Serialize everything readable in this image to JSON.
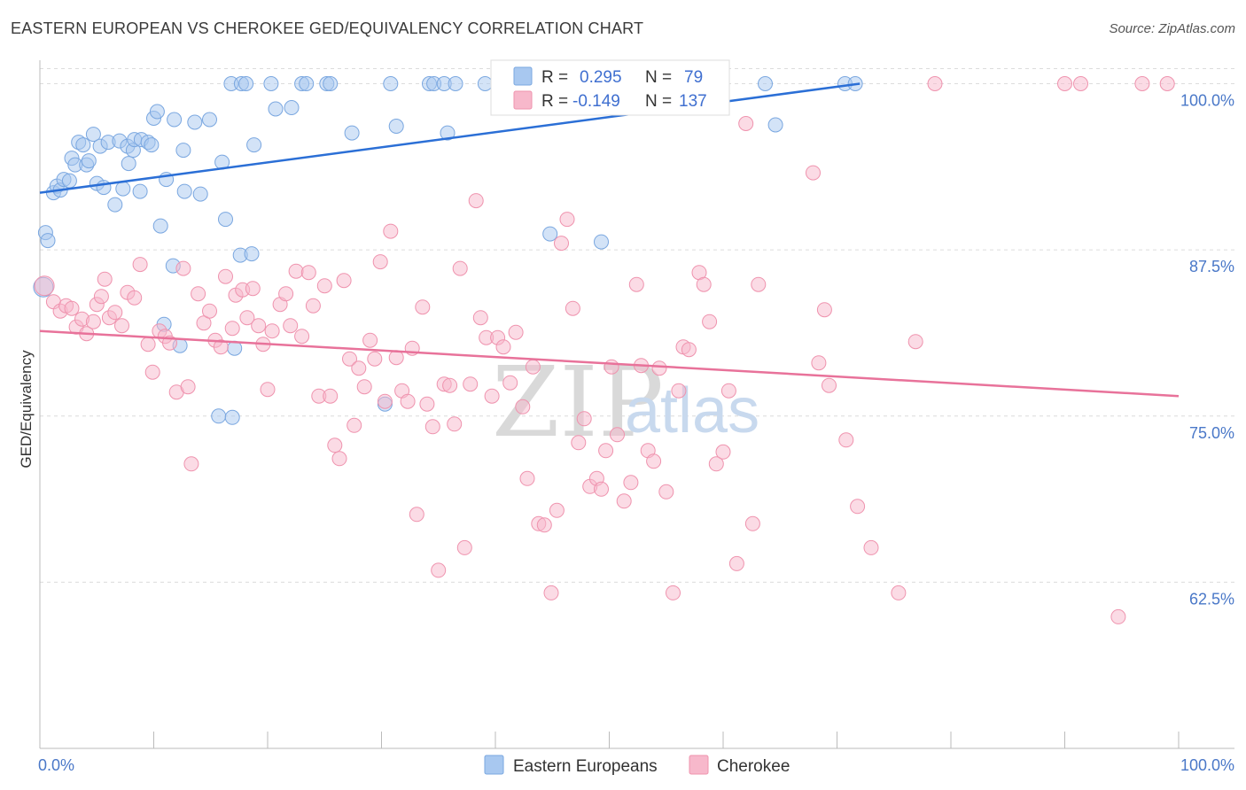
{
  "header": {
    "title": "EASTERN EUROPEAN VS CHEROKEE GED/EQUIVALENCY CORRELATION CHART",
    "source": "Source: ZipAtlas.com"
  },
  "watermark": {
    "zip": "ZIP",
    "atlas": "atlas"
  },
  "legend_box": {
    "rows": [
      {
        "r_label": "R =",
        "r_value": "0.295",
        "n_label": "N =",
        "n_value": "79",
        "color": "#a8c8f0"
      },
      {
        "r_label": "R =",
        "r_value": "-0.149",
        "n_label": "N =",
        "n_value": "137",
        "color": "#f7b8cb"
      }
    ]
  },
  "bottom_legend": [
    "Eastern Europeans",
    "Cherokee"
  ],
  "chart_data": {
    "type": "scatter",
    "title": "EASTERN EUROPEAN VS CHEROKEE GED/EQUIVALENCY CORRELATION CHART",
    "xlabel": "",
    "ylabel": "GED/Equivalency",
    "xlim": [
      0,
      100
    ],
    "ylim": [
      50,
      101.5
    ],
    "x_tick_labels": [
      "0.0%",
      "100.0%"
    ],
    "y_ticks": [
      62.5,
      75.0,
      87.5,
      100.0
    ],
    "y_tick_labels": [
      "62.5%",
      "75.0%",
      "87.5%",
      "100.0%"
    ],
    "grid": true,
    "legend": "top-center",
    "series": [
      {
        "name": "Eastern Europeans",
        "color": "#a8c8f0",
        "stroke": "#7aa7e0",
        "trend_color": "#2b6fd6",
        "trend": {
          "x": [
            0,
            72
          ],
          "y": [
            91.8,
            100.0
          ]
        },
        "points": [
          [
            0.3,
            84.7
          ],
          [
            0.5,
            88.8
          ],
          [
            0.7,
            88.2
          ],
          [
            1.2,
            91.8
          ],
          [
            1.5,
            92.3
          ],
          [
            1.8,
            92.0
          ],
          [
            2.1,
            92.8
          ],
          [
            2.6,
            92.7
          ],
          [
            2.8,
            94.4
          ],
          [
            3.1,
            93.9
          ],
          [
            3.4,
            95.6
          ],
          [
            3.8,
            95.4
          ],
          [
            4.1,
            93.9
          ],
          [
            4.3,
            94.2
          ],
          [
            4.7,
            96.2
          ],
          [
            5.0,
            92.5
          ],
          [
            5.3,
            95.3
          ],
          [
            5.6,
            92.2
          ],
          [
            6.0,
            95.6
          ],
          [
            6.6,
            90.9
          ],
          [
            7.0,
            95.7
          ],
          [
            7.3,
            92.1
          ],
          [
            7.7,
            95.3
          ],
          [
            7.8,
            94.0
          ],
          [
            8.2,
            95.0
          ],
          [
            8.3,
            95.8
          ],
          [
            8.8,
            91.9
          ],
          [
            8.9,
            95.8
          ],
          [
            9.5,
            95.6
          ],
          [
            9.8,
            95.4
          ],
          [
            10.0,
            97.4
          ],
          [
            10.3,
            97.9
          ],
          [
            10.6,
            89.3
          ],
          [
            10.9,
            81.9
          ],
          [
            11.1,
            92.8
          ],
          [
            11.7,
            86.3
          ],
          [
            11.8,
            97.3
          ],
          [
            12.3,
            80.3
          ],
          [
            12.6,
            95.0
          ],
          [
            12.7,
            91.9
          ],
          [
            13.6,
            97.1
          ],
          [
            14.1,
            91.7
          ],
          [
            14.9,
            97.3
          ],
          [
            15.7,
            75.0
          ],
          [
            16.0,
            94.1
          ],
          [
            16.3,
            89.8
          ],
          [
            16.8,
            100.0
          ],
          [
            16.9,
            74.9
          ],
          [
            17.1,
            80.1
          ],
          [
            17.6,
            87.1
          ],
          [
            17.7,
            100.0
          ],
          [
            18.1,
            100.0
          ],
          [
            18.6,
            87.2
          ],
          [
            18.8,
            95.4
          ],
          [
            20.3,
            100.0
          ],
          [
            20.7,
            98.1
          ],
          [
            22.1,
            98.2
          ],
          [
            23.0,
            100.0
          ],
          [
            23.4,
            100.0
          ],
          [
            25.2,
            100.0
          ],
          [
            25.5,
            100.0
          ],
          [
            27.4,
            96.3
          ],
          [
            30.3,
            75.9
          ],
          [
            30.8,
            100.0
          ],
          [
            31.3,
            96.8
          ],
          [
            34.2,
            100.0
          ],
          [
            34.6,
            100.0
          ],
          [
            35.5,
            100.0
          ],
          [
            35.8,
            96.3
          ],
          [
            36.5,
            100.0
          ],
          [
            39.1,
            100.0
          ],
          [
            44.8,
            88.7
          ],
          [
            47.7,
            100.0
          ],
          [
            49.3,
            88.1
          ],
          [
            53.3,
            100.0
          ],
          [
            63.7,
            100.0
          ],
          [
            64.6,
            96.9
          ],
          [
            70.7,
            100.0
          ],
          [
            71.6,
            100.0
          ]
        ]
      },
      {
        "name": "Cherokee",
        "color": "#f7b8cb",
        "stroke": "#ef93ae",
        "trend_color": "#e8729a",
        "trend": {
          "x": [
            0,
            100
          ],
          "y": [
            81.4,
            76.5
          ]
        },
        "points": [
          [
            0.4,
            84.8
          ],
          [
            1.2,
            83.6
          ],
          [
            1.8,
            82.9
          ],
          [
            2.3,
            83.3
          ],
          [
            2.8,
            83.1
          ],
          [
            3.2,
            81.7
          ],
          [
            3.7,
            82.3
          ],
          [
            4.1,
            81.2
          ],
          [
            4.7,
            82.1
          ],
          [
            5.0,
            83.4
          ],
          [
            5.4,
            84.0
          ],
          [
            5.7,
            85.3
          ],
          [
            6.1,
            82.4
          ],
          [
            6.6,
            82.8
          ],
          [
            7.2,
            81.8
          ],
          [
            7.7,
            84.3
          ],
          [
            8.3,
            83.9
          ],
          [
            8.8,
            86.4
          ],
          [
            9.5,
            80.4
          ],
          [
            9.9,
            78.3
          ],
          [
            10.5,
            81.4
          ],
          [
            11.0,
            81.0
          ],
          [
            11.4,
            80.5
          ],
          [
            12.0,
            76.8
          ],
          [
            12.6,
            86.1
          ],
          [
            13.0,
            77.2
          ],
          [
            13.3,
            71.4
          ],
          [
            13.9,
            84.2
          ],
          [
            14.4,
            82.0
          ],
          [
            14.9,
            82.9
          ],
          [
            15.4,
            80.7
          ],
          [
            15.9,
            80.2
          ],
          [
            16.3,
            85.5
          ],
          [
            16.9,
            81.6
          ],
          [
            17.2,
            84.1
          ],
          [
            17.8,
            84.5
          ],
          [
            18.2,
            82.4
          ],
          [
            18.7,
            84.6
          ],
          [
            19.2,
            81.8
          ],
          [
            19.6,
            80.4
          ],
          [
            20.0,
            77.0
          ],
          [
            20.4,
            81.4
          ],
          [
            21.1,
            83.4
          ],
          [
            21.6,
            84.2
          ],
          [
            22.0,
            81.8
          ],
          [
            22.5,
            85.9
          ],
          [
            23.0,
            81.0
          ],
          [
            23.6,
            85.8
          ],
          [
            24.0,
            83.3
          ],
          [
            24.5,
            76.5
          ],
          [
            25.0,
            84.8
          ],
          [
            25.5,
            76.5
          ],
          [
            25.9,
            72.8
          ],
          [
            26.3,
            71.8
          ],
          [
            26.7,
            85.2
          ],
          [
            27.2,
            79.3
          ],
          [
            27.6,
            74.3
          ],
          [
            28.0,
            78.6
          ],
          [
            28.5,
            77.2
          ],
          [
            29.0,
            80.7
          ],
          [
            29.4,
            79.3
          ],
          [
            29.9,
            86.6
          ],
          [
            30.3,
            76.1
          ],
          [
            30.8,
            88.9
          ],
          [
            31.3,
            79.4
          ],
          [
            31.8,
            76.9
          ],
          [
            32.3,
            76.1
          ],
          [
            32.7,
            80.1
          ],
          [
            33.1,
            67.6
          ],
          [
            33.6,
            83.2
          ],
          [
            34.0,
            75.9
          ],
          [
            34.5,
            74.2
          ],
          [
            35.0,
            63.4
          ],
          [
            35.5,
            77.4
          ],
          [
            36.0,
            77.3
          ],
          [
            36.4,
            74.4
          ],
          [
            36.9,
            86.1
          ],
          [
            37.3,
            65.1
          ],
          [
            37.8,
            77.4
          ],
          [
            38.3,
            91.2
          ],
          [
            38.7,
            82.4
          ],
          [
            39.2,
            80.9
          ],
          [
            39.7,
            76.5
          ],
          [
            40.2,
            80.9
          ],
          [
            40.7,
            80.2
          ],
          [
            41.3,
            77.5
          ],
          [
            41.8,
            81.3
          ],
          [
            42.4,
            75.7
          ],
          [
            42.8,
            70.3
          ],
          [
            43.3,
            78.7
          ],
          [
            43.8,
            66.9
          ],
          [
            44.3,
            66.8
          ],
          [
            44.9,
            61.7
          ],
          [
            45.4,
            67.9
          ],
          [
            45.8,
            88.0
          ],
          [
            46.3,
            89.8
          ],
          [
            46.8,
            83.1
          ],
          [
            47.3,
            73.0
          ],
          [
            47.8,
            74.8
          ],
          [
            48.3,
            69.7
          ],
          [
            48.9,
            70.3
          ],
          [
            49.3,
            69.5
          ],
          [
            49.7,
            72.4
          ],
          [
            50.2,
            78.7
          ],
          [
            50.7,
            73.6
          ],
          [
            51.3,
            68.6
          ],
          [
            51.9,
            70.0
          ],
          [
            52.4,
            84.9
          ],
          [
            52.8,
            78.8
          ],
          [
            53.4,
            72.4
          ],
          [
            53.9,
            71.6
          ],
          [
            54.4,
            78.6
          ],
          [
            55.0,
            69.3
          ],
          [
            55.6,
            61.7
          ],
          [
            56.1,
            76.9
          ],
          [
            56.5,
            80.2
          ],
          [
            57.0,
            80.0
          ],
          [
            57.9,
            85.8
          ],
          [
            58.3,
            84.9
          ],
          [
            58.8,
            82.1
          ],
          [
            59.4,
            71.4
          ],
          [
            60.0,
            72.3
          ],
          [
            60.5,
            76.9
          ],
          [
            61.2,
            63.9
          ],
          [
            62.0,
            97.0
          ],
          [
            62.6,
            66.9
          ],
          [
            63.1,
            84.9
          ],
          [
            67.9,
            93.3
          ],
          [
            68.4,
            79.0
          ],
          [
            68.9,
            83.0
          ],
          [
            69.3,
            77.3
          ],
          [
            70.8,
            73.2
          ],
          [
            71.8,
            68.2
          ],
          [
            73.0,
            65.1
          ],
          [
            75.4,
            61.7
          ],
          [
            76.9,
            80.6
          ],
          [
            78.6,
            100.0
          ],
          [
            90.0,
            100.0
          ],
          [
            91.4,
            100.0
          ],
          [
            94.7,
            59.9
          ],
          [
            96.8,
            100.0
          ],
          [
            99.0,
            100.0
          ]
        ]
      }
    ]
  }
}
